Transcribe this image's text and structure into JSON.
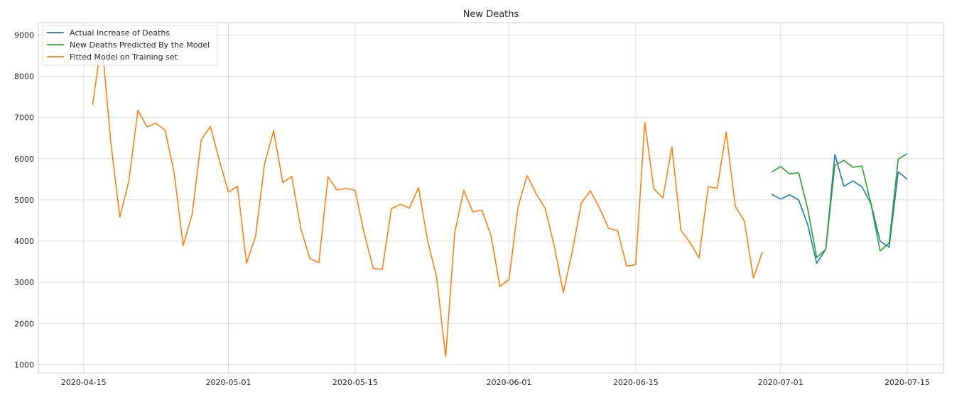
{
  "chart_data": {
    "type": "line",
    "title": "New Deaths",
    "xlabel": "",
    "ylabel": "",
    "x_axis_type": "date",
    "xlim": [
      "2020-04-10",
      "2020-07-19"
    ],
    "ylim": [
      800,
      9300
    ],
    "x_ticks": [
      "2020-04-15",
      "2020-05-01",
      "2020-05-15",
      "2020-06-01",
      "2020-06-15",
      "2020-07-01",
      "2020-07-15"
    ],
    "y_ticks": [
      1000,
      2000,
      3000,
      4000,
      5000,
      6000,
      7000,
      8000,
      9000
    ],
    "grid": true,
    "legend_position": "top-left",
    "series": [
      {
        "name": "Actual Increase of Deaths",
        "color": "#1f77b4",
        "x": [
          "2020-06-30",
          "2020-07-01",
          "2020-07-02",
          "2020-07-03",
          "2020-07-04",
          "2020-07-05",
          "2020-07-06",
          "2020-07-07",
          "2020-07-08",
          "2020-07-09",
          "2020-07-10",
          "2020-07-11",
          "2020-07-12",
          "2020-07-13",
          "2020-07-14",
          "2020-07-15"
        ],
        "values": [
          5140,
          5020,
          5120,
          5000,
          4400,
          3460,
          3800,
          6100,
          5330,
          5460,
          5320,
          4900,
          4000,
          3850,
          5680,
          5500
        ]
      },
      {
        "name": "New Deaths Predicted By the Model",
        "color": "#2ca02c",
        "x": [
          "2020-06-30",
          "2020-07-01",
          "2020-07-02",
          "2020-07-03",
          "2020-07-04",
          "2020-07-05",
          "2020-07-06",
          "2020-07-07",
          "2020-07-08",
          "2020-07-09",
          "2020-07-10",
          "2020-07-11",
          "2020-07-12",
          "2020-07-13",
          "2020-07-14",
          "2020-07-15"
        ],
        "values": [
          5670,
          5810,
          5630,
          5660,
          4780,
          3600,
          3800,
          5840,
          5960,
          5790,
          5820,
          4890,
          3760,
          3960,
          5990,
          6120
        ]
      },
      {
        "name": "Fitted Model on Training set",
        "color": "#ff7f0e",
        "start_date": "2020-04-16",
        "values": [
          7300,
          8880,
          6400,
          4580,
          5460,
          7170,
          6770,
          6860,
          6690,
          5660,
          3890,
          4660,
          6460,
          6780,
          5960,
          5190,
          5330,
          3460,
          4120,
          5880,
          6680,
          5420,
          5570,
          4300,
          3570,
          3480,
          5560,
          5240,
          5280,
          5230,
          4190,
          3340,
          3310,
          4790,
          4890,
          4800,
          5300,
          4020,
          3120,
          1190,
          4200,
          5230,
          4710,
          4750,
          4140,
          2900,
          3070,
          4830,
          5590,
          5150,
          4790,
          3880,
          2750,
          3760,
          4930,
          5220,
          4800,
          4310,
          4250,
          3390,
          3430,
          6880,
          5270,
          5050,
          6280,
          4260,
          3960,
          3590,
          5320,
          5280,
          6650,
          4840,
          4490,
          3100,
          3740
        ]
      }
    ]
  }
}
